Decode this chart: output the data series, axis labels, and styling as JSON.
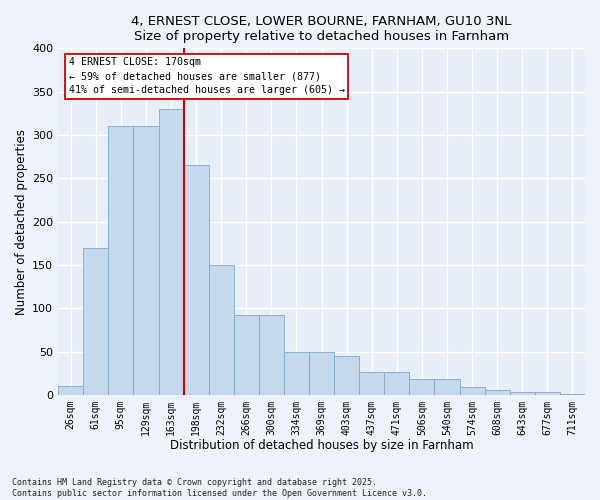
{
  "title": "4, ERNEST CLOSE, LOWER BOURNE, FARNHAM, GU10 3NL",
  "subtitle": "Size of property relative to detached houses in Farnham",
  "xlabel": "Distribution of detached houses by size in Farnham",
  "ylabel": "Number of detached properties",
  "footnote": "Contains HM Land Registry data © Crown copyright and database right 2025.\nContains public sector information licensed under the Open Government Licence v3.0.",
  "bin_labels": [
    "26sqm",
    "61sqm",
    "95sqm",
    "129sqm",
    "163sqm",
    "198sqm",
    "232sqm",
    "266sqm",
    "300sqm",
    "334sqm",
    "369sqm",
    "403sqm",
    "437sqm",
    "471sqm",
    "506sqm",
    "540sqm",
    "574sqm",
    "608sqm",
    "643sqm",
    "677sqm",
    "711sqm"
  ],
  "bar_heights": [
    11,
    170,
    311,
    311,
    330,
    265,
    150,
    93,
    93,
    50,
    50,
    45,
    27,
    27,
    19,
    19,
    10,
    6,
    4,
    4,
    1
  ],
  "bar_color": "#c6d9ec",
  "bar_edge_color": "#7aaac8",
  "bg_color": "#e8eef8",
  "grid_color": "#ffffff",
  "annotation_text": "4 ERNEST CLOSE: 170sqm\n← 59% of detached houses are smaller (877)\n41% of semi-detached houses are larger (605) →",
  "annotation_box_color": "#ffffff",
  "annotation_box_edge": "#cc0000",
  "vline_x_index": 5,
  "vline_color": "#cc0000",
  "ylim": [
    0,
    400
  ],
  "yticks": [
    0,
    50,
    100,
    150,
    200,
    250,
    300,
    350,
    400
  ],
  "fig_bg": "#eef2fa"
}
